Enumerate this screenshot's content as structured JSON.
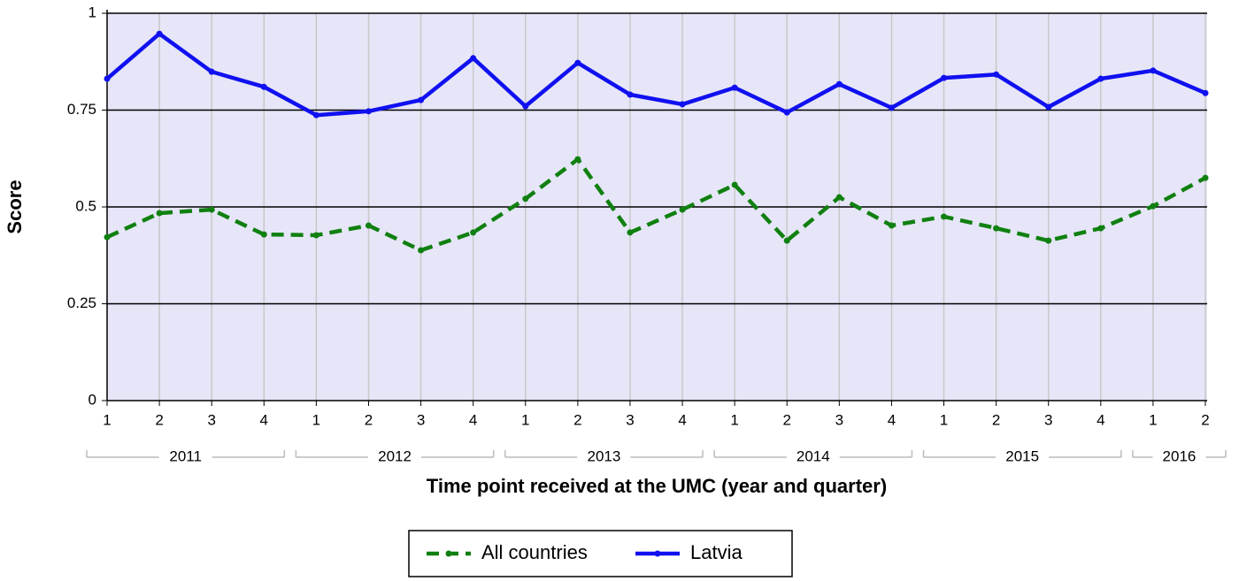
{
  "chart_data": {
    "type": "line",
    "ylabel": "Score",
    "xlabel": "Time point received at the UMC (year and quarter)",
    "groups": [
      {
        "name": "2011",
        "categories": [
          "1",
          "2",
          "3",
          "4"
        ]
      },
      {
        "name": "2012",
        "categories": [
          "1",
          "2",
          "3",
          "4"
        ]
      },
      {
        "name": "2013",
        "categories": [
          "1",
          "2",
          "3",
          "4"
        ]
      },
      {
        "name": "2014",
        "categories": [
          "1",
          "2",
          "3",
          "4"
        ]
      },
      {
        "name": "2015",
        "categories": [
          "1",
          "2",
          "3",
          "4"
        ]
      },
      {
        "name": "2016",
        "categories": [
          "1",
          "2"
        ]
      }
    ],
    "series": [
      {
        "name": "All countries",
        "color": "#108010",
        "dashed": true,
        "values": [
          0.422,
          0.484,
          0.493,
          0.429,
          0.427,
          0.452,
          0.388,
          0.434,
          0.521,
          0.623,
          0.434,
          0.493,
          0.557,
          0.413,
          0.525,
          0.452,
          0.475,
          0.445,
          0.413,
          0.445,
          0.502,
          0.575
        ]
      },
      {
        "name": "Latvia",
        "color": "#1010f0",
        "dashed": false,
        "values": [
          0.831,
          0.947,
          0.849,
          0.81,
          0.737,
          0.747,
          0.776,
          0.884,
          0.76,
          0.872,
          0.79,
          0.765,
          0.808,
          0.744,
          0.817,
          0.756,
          0.833,
          0.842,
          0.758,
          0.831,
          0.852,
          0.794
        ]
      }
    ],
    "ylim": [
      0,
      1
    ],
    "yticks": [
      0,
      0.25,
      0.5,
      0.75,
      1
    ],
    "grid": true
  }
}
